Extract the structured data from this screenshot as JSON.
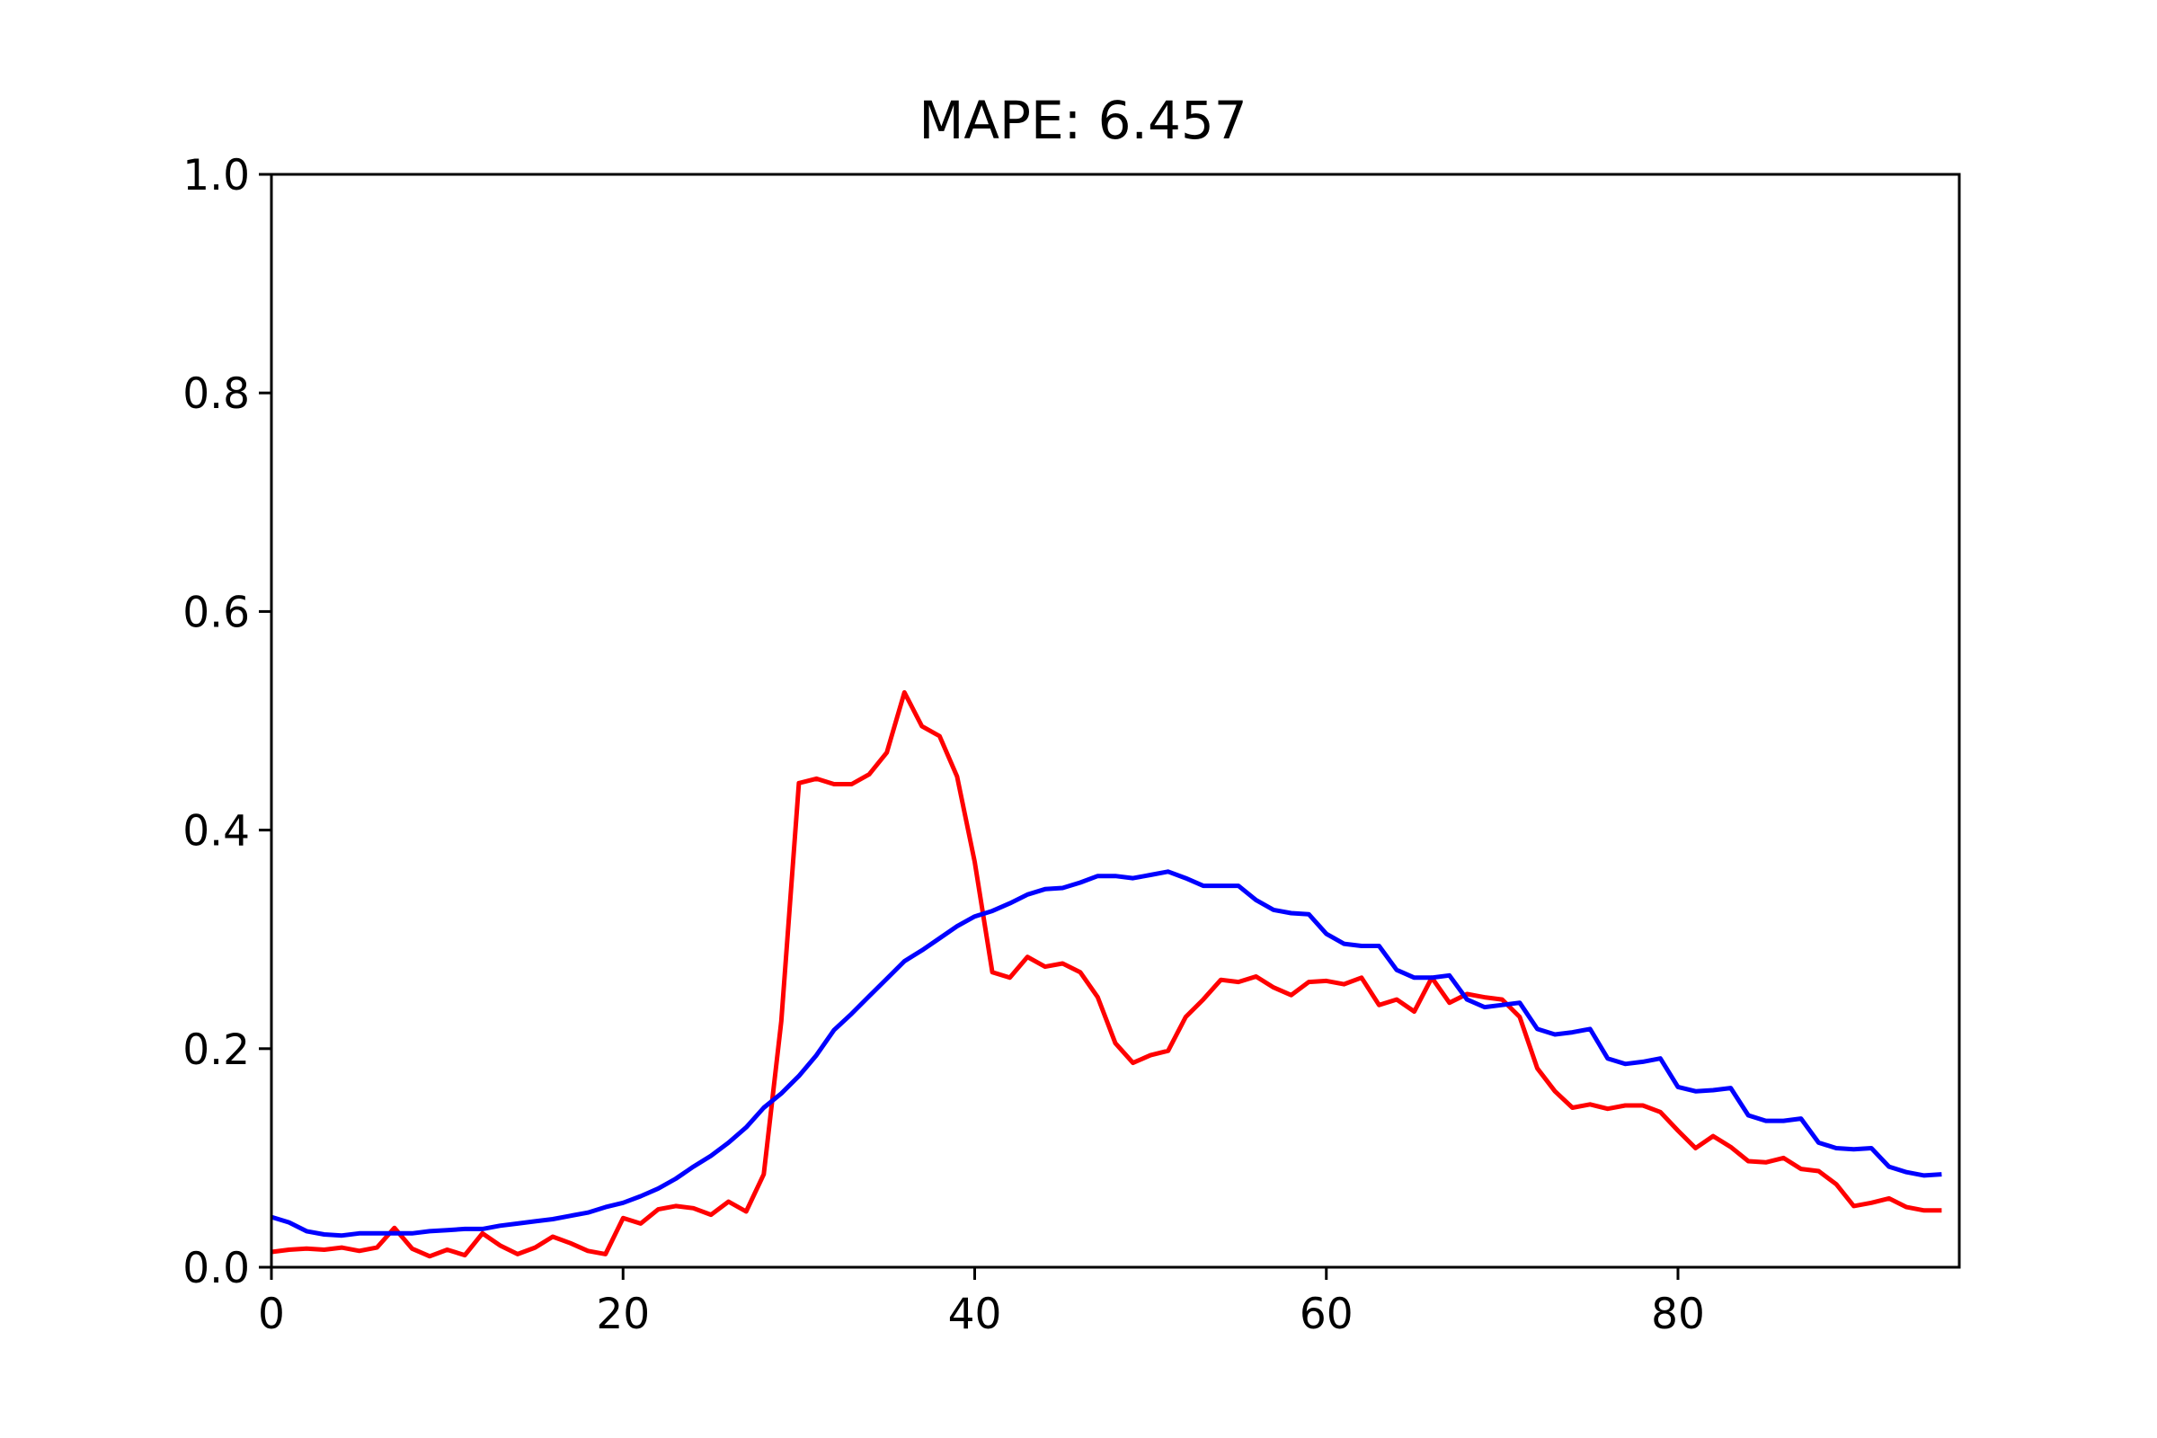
{
  "chart_data": {
    "type": "line",
    "title": "MAPE: 6.457",
    "xlabel": "",
    "ylabel": "",
    "xlim": [
      0,
      96
    ],
    "ylim": [
      0.0,
      1.0
    ],
    "xticks": [
      0,
      20,
      40,
      60,
      80
    ],
    "xtick_labels": [
      "0",
      "20",
      "40",
      "60",
      "80"
    ],
    "yticks": [
      0.0,
      0.2,
      0.4,
      0.6,
      0.8,
      1.0
    ],
    "ytick_labels": [
      "0.0",
      "0.2",
      "0.4",
      "0.6",
      "0.8",
      "1.0"
    ],
    "grid": false,
    "legend": "none",
    "x": [
      0,
      1,
      2,
      3,
      4,
      5,
      6,
      7,
      8,
      9,
      10,
      11,
      12,
      13,
      14,
      15,
      16,
      17,
      18,
      19,
      20,
      21,
      22,
      23,
      24,
      25,
      26,
      27,
      28,
      29,
      30,
      31,
      32,
      33,
      34,
      35,
      36,
      37,
      38,
      39,
      40,
      41,
      42,
      43,
      44,
      45,
      46,
      47,
      48,
      49,
      50,
      51,
      52,
      53,
      54,
      55,
      56,
      57,
      58,
      59,
      60,
      61,
      62,
      63,
      64,
      65,
      66,
      67,
      68,
      69,
      70,
      71,
      72,
      73,
      74,
      75,
      76,
      77,
      78,
      79,
      80,
      81,
      82,
      83,
      84,
      85,
      86,
      87,
      88,
      89,
      90,
      91,
      92,
      93,
      94,
      95
    ],
    "series": [
      {
        "color": "#ff0000",
        "values": [
          0.014,
          0.016,
          0.017,
          0.016,
          0.018,
          0.015,
          0.018,
          0.036,
          0.017,
          0.01,
          0.016,
          0.011,
          0.031,
          0.02,
          0.012,
          0.018,
          0.028,
          0.022,
          0.015,
          0.012,
          0.045,
          0.04,
          0.053,
          0.056,
          0.054,
          0.048,
          0.06,
          0.051,
          0.085,
          0.225,
          0.443,
          0.447,
          0.442,
          0.442,
          0.451,
          0.471,
          0.526,
          0.495,
          0.486,
          0.449,
          0.371,
          0.27,
          0.265,
          0.284,
          0.275,
          0.278,
          0.27,
          0.247,
          0.205,
          0.187,
          0.194,
          0.198,
          0.229,
          0.245,
          0.263,
          0.261,
          0.266,
          0.256,
          0.249,
          0.261,
          0.262,
          0.259,
          0.265,
          0.24,
          0.245,
          0.234,
          0.265,
          0.242,
          0.25,
          0.247,
          0.245,
          0.229,
          0.182,
          0.161,
          0.146,
          0.149,
          0.145,
          0.148,
          0.148,
          0.142,
          0.125,
          0.109,
          0.12,
          0.11,
          0.097,
          0.096,
          0.1,
          0.09,
          0.088,
          0.076,
          0.056,
          0.059,
          0.063,
          0.055,
          0.052,
          0.052
        ]
      },
      {
        "color": "#0000ff",
        "values": [
          0.046,
          0.041,
          0.033,
          0.03,
          0.029,
          0.031,
          0.031,
          0.031,
          0.031,
          0.033,
          0.034,
          0.035,
          0.035,
          0.038,
          0.04,
          0.042,
          0.044,
          0.047,
          0.05,
          0.055,
          0.059,
          0.065,
          0.072,
          0.081,
          0.092,
          0.102,
          0.114,
          0.128,
          0.146,
          0.159,
          0.175,
          0.194,
          0.217,
          0.232,
          0.248,
          0.264,
          0.28,
          0.29,
          0.301,
          0.312,
          0.321,
          0.326,
          0.333,
          0.341,
          0.346,
          0.347,
          0.352,
          0.358,
          0.358,
          0.356,
          0.359,
          0.362,
          0.356,
          0.349,
          0.349,
          0.349,
          0.336,
          0.327,
          0.324,
          0.323,
          0.305,
          0.296,
          0.294,
          0.294,
          0.272,
          0.265,
          0.265,
          0.267,
          0.245,
          0.238,
          0.24,
          0.242,
          0.218,
          0.213,
          0.215,
          0.218,
          0.191,
          0.186,
          0.188,
          0.191,
          0.165,
          0.161,
          0.162,
          0.164,
          0.139,
          0.134,
          0.134,
          0.136,
          0.114,
          0.109,
          0.108,
          0.109,
          0.092,
          0.087,
          0.084,
          0.085
        ]
      }
    ]
  }
}
